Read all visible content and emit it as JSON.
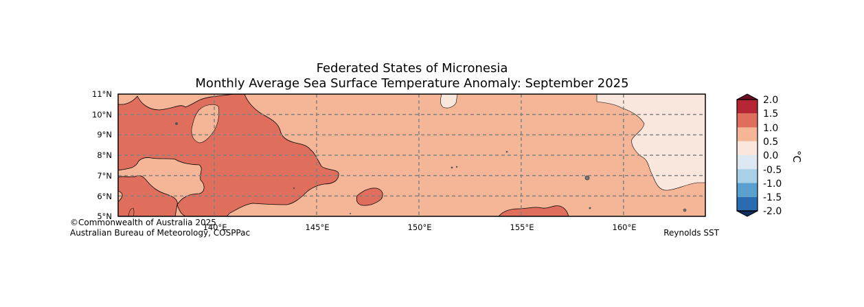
{
  "title": {
    "line1": "Federated States of Micronesia",
    "line2": "Monthly Average Sea Surface Temperature Anomaly: September 2025"
  },
  "map": {
    "lon_range": [
      135.3,
      164
    ],
    "lat_range": [
      5,
      11
    ],
    "lat_labels": [
      "11°N",
      "10°N",
      "9°N",
      "8°N",
      "7°N",
      "6°N",
      "5°N"
    ],
    "lon_labels": [
      "140°E",
      "145°E",
      "150°E",
      "155°E",
      "160°E"
    ],
    "gridlines": "dashed grey"
  },
  "colors": {
    "band_0_0.5": "#f9e6dc",
    "band_0.5_1.0": "#f5b697",
    "band_1.0_1.5": "#df6f5c",
    "band_1.5_2.0": "#b52735",
    "over_2.0": "#6d0e22",
    "band_-0.5_0": "#dce9f3",
    "band_-1.0_-0.5": "#a8d0e6",
    "band_-1.5_-1.0": "#5b9fcf",
    "band_-2.0_-1.5": "#2a6cb0",
    "under_-2.0": "#0d2e60",
    "grid": "#808080",
    "coast": "#000000"
  },
  "colorbar": {
    "ticks": [
      "2.0",
      "1.5",
      "1.0",
      "0.5",
      "0.0",
      "-0.5",
      "-1.0",
      "-1.5",
      "-2.0"
    ],
    "unit": "°C"
  },
  "credits": {
    "left_line1": "©Commonwealth of Australia 2025",
    "left_line2": "Australian Bureau of Meteorology, COSPPac",
    "right": "Reynolds SST"
  }
}
